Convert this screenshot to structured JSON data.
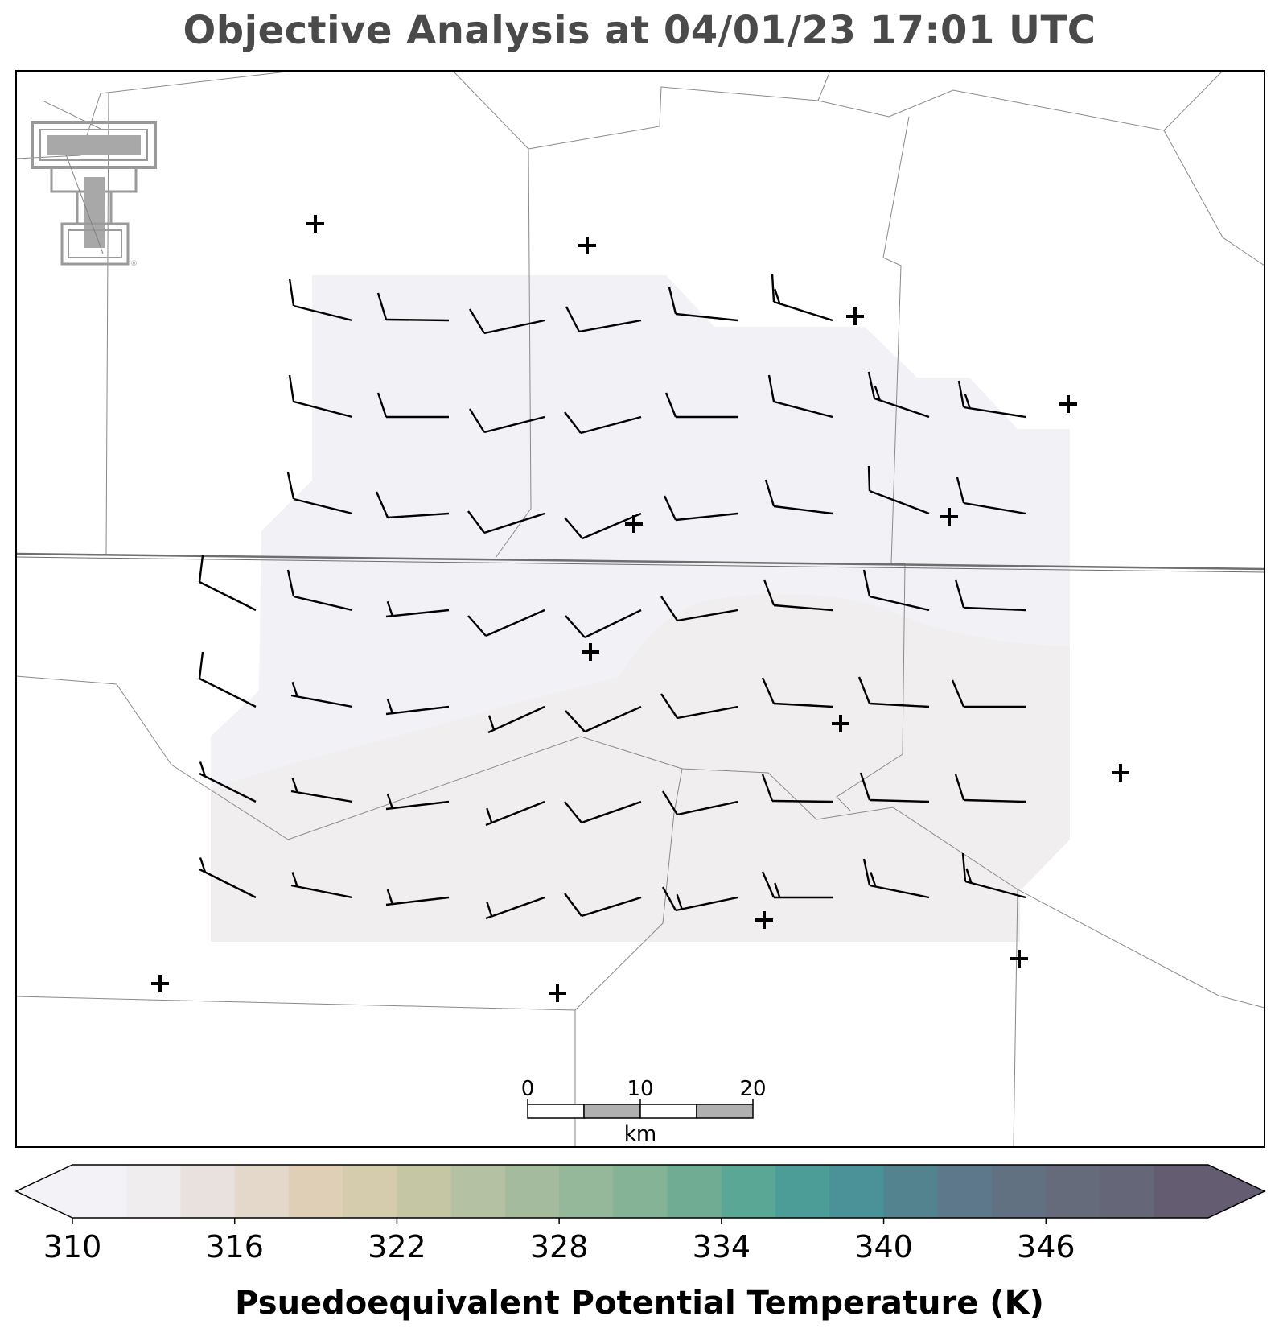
{
  "title": "Objective Analysis at 04/01/23 17:01 UTC",
  "logo": {
    "name": "double-T-logo",
    "color": "#9a9a9a"
  },
  "scale_bar": {
    "labels": [
      "0",
      "10",
      "20"
    ],
    "unit": "km"
  },
  "colorbar": {
    "label": "Psuedoequivalent Potential Temperature (K)",
    "ticks": [
      "310",
      "316",
      "322",
      "328",
      "334",
      "340",
      "346"
    ],
    "colors": [
      "#f3f2f7",
      "#efedee",
      "#e8e1dd",
      "#e3d8ca",
      "#e0cfb7",
      "#d5ccae",
      "#c5c6a4",
      "#b5c1a3",
      "#a4bb9e",
      "#95b79a",
      "#84b395",
      "#70ac93",
      "#5aa796",
      "#4c9d98",
      "#4a9198",
      "#52838f",
      "#5c788a",
      "#627182",
      "#666b7c",
      "#656677",
      "#645d72"
    ],
    "extend": "both",
    "min_color": "#f3f2f7",
    "max_color": "#645d72"
  },
  "analysis_field": {
    "colors": [
      "#f2f2f6",
      "#f0eeef"
    ],
    "levels_k": [
      "310–312",
      "312–314"
    ]
  },
  "station_markers": {
    "symbol": "+"
  }
}
